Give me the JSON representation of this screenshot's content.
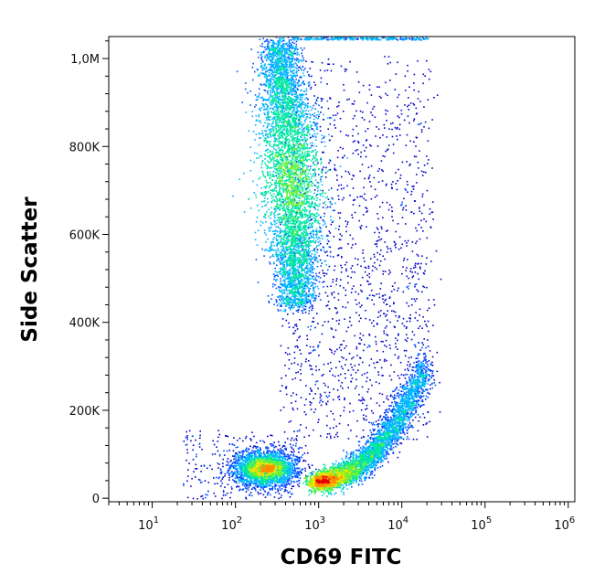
{
  "chart_data": {
    "type": "scatter",
    "title": "",
    "xlabel": "CD69 FITC",
    "ylabel": "Side Scatter",
    "x_scale": "log",
    "y_scale": "linear",
    "xlim": [
      3.0,
      1200000
    ],
    "ylim": [
      -8000,
      1050000
    ],
    "grid": false,
    "legend": "none",
    "x_ticks": [
      {
        "value": 10,
        "base": "10",
        "exp": "1"
      },
      {
        "value": 100,
        "base": "10",
        "exp": "2"
      },
      {
        "value": 1000,
        "base": "10",
        "exp": "3"
      },
      {
        "value": 10000,
        "base": "10",
        "exp": "4"
      },
      {
        "value": 100000,
        "base": "10",
        "exp": "5"
      },
      {
        "value": 1000000,
        "base": "10",
        "exp": "6"
      }
    ],
    "y_ticks": [
      {
        "value": 0,
        "label": "0"
      },
      {
        "value": 200000,
        "label": "200K"
      },
      {
        "value": 400000,
        "label": "400K"
      },
      {
        "value": 600000,
        "label": "600K"
      },
      {
        "value": 800000,
        "label": "800K"
      },
      {
        "value": 1000000,
        "label": "1,0M"
      }
    ],
    "colormap": [
      "#0000c8",
      "#0050ff",
      "#00b4ff",
      "#00e6a0",
      "#64f03c",
      "#e6e600",
      "#ff8c00",
      "#e60000"
    ],
    "populations": [
      {
        "center_x": 750,
        "center_y": 700000,
        "density": "high"
      },
      {
        "center_x": 450,
        "center_y": 70000,
        "density": "high"
      },
      {
        "center_x": 2800,
        "center_y": 45000,
        "density": "high"
      },
      {
        "center_x": 5000,
        "center_y": 300000,
        "density": "low"
      }
    ]
  }
}
